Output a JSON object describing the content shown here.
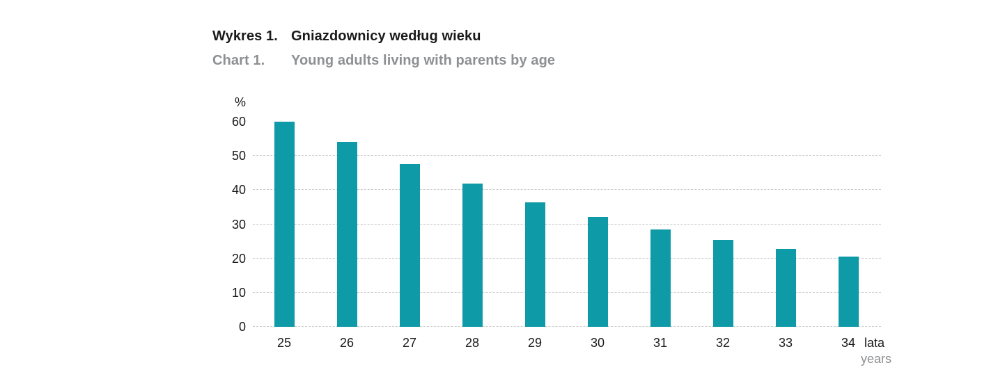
{
  "title": {
    "label": "Wykres 1.",
    "text": "Gniazdownicy według wieku"
  },
  "subtitle": {
    "label": "Chart 1.",
    "text": "Young adults living with parents by age"
  },
  "chart_data": {
    "type": "bar",
    "title": "Gniazdownicy według wieku / Young adults living with parents by age",
    "categories": [
      "25",
      "26",
      "27",
      "28",
      "29",
      "30",
      "31",
      "32",
      "33",
      "34"
    ],
    "values": [
      60.1,
      54.2,
      47.7,
      42.0,
      36.5,
      32.1,
      28.5,
      25.5,
      22.7,
      20.5
    ],
    "unit_label": "%",
    "x_unit_label_pl": "lata",
    "x_unit_label_en": "years",
    "xlabel": "lata / years",
    "ylabel": "%",
    "ylim": [
      0,
      60
    ],
    "yticks": [
      0,
      10,
      20,
      30,
      40,
      50,
      60
    ],
    "gridline_ticks": [
      0,
      10,
      20,
      30,
      40,
      50
    ],
    "grid": "horizontal-dashed",
    "legend": "none",
    "bar_color": "#0f9aa8",
    "gridline_color": "#cbcbcb",
    "subtitle_color": "#8d8f92"
  }
}
